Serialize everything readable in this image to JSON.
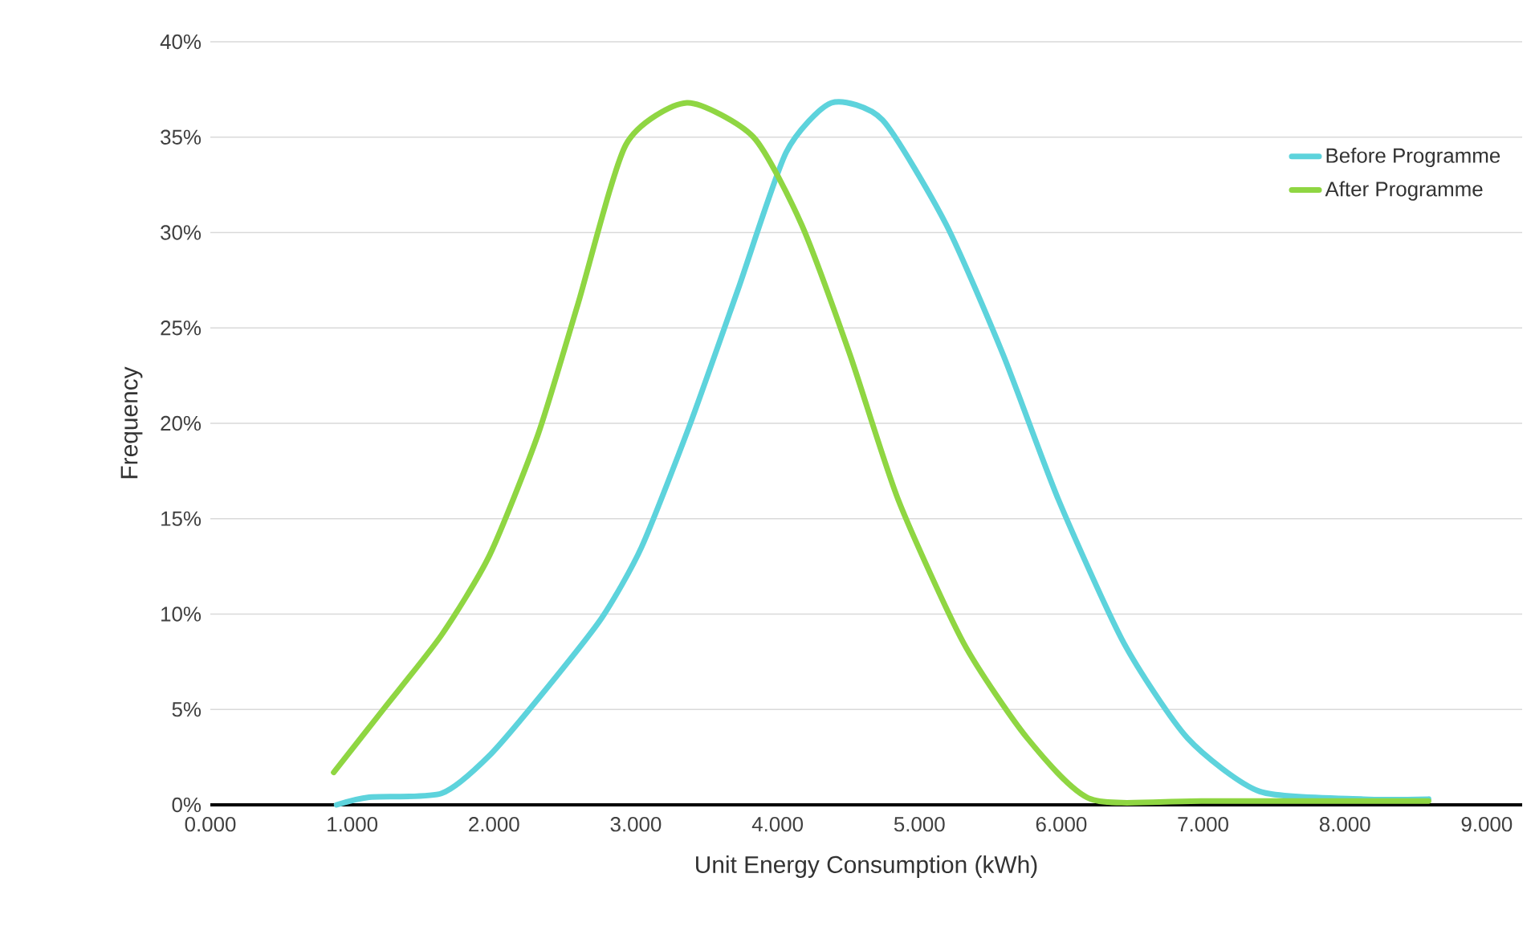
{
  "chart_data": {
    "type": "line",
    "xlabel": "Unit Energy Consumption (kWh)",
    "ylabel": "Frequency",
    "xlim": [
      0,
      9.25
    ],
    "ylim": [
      0,
      40
    ],
    "xticks": [
      {
        "value": 0,
        "label": "0.000"
      },
      {
        "value": 1,
        "label": "1.000"
      },
      {
        "value": 2,
        "label": "2.000"
      },
      {
        "value": 3,
        "label": "3.000"
      },
      {
        "value": 4,
        "label": "4.000"
      },
      {
        "value": 5,
        "label": "5.000"
      },
      {
        "value": 6,
        "label": "6.000"
      },
      {
        "value": 7,
        "label": "7.000"
      },
      {
        "value": 8,
        "label": "8.000"
      },
      {
        "value": 9,
        "label": "9.000"
      }
    ],
    "yticks": [
      {
        "value": 0,
        "label": "0%"
      },
      {
        "value": 5,
        "label": "5%"
      },
      {
        "value": 10,
        "label": "10%"
      },
      {
        "value": 15,
        "label": "15%"
      },
      {
        "value": 20,
        "label": "20%"
      },
      {
        "value": 25,
        "label": "25%"
      },
      {
        "value": 30,
        "label": "30%"
      },
      {
        "value": 35,
        "label": "35%"
      },
      {
        "value": 40,
        "label": "40%"
      }
    ],
    "grid": "y",
    "legend": "top right",
    "series": [
      {
        "name": "Before Programme",
        "color": "#5dd3dc",
        "x": [
          0.89,
          1.12,
          1.63,
          1.97,
          2.36,
          2.76,
          3.04,
          3.38,
          3.72,
          4.06,
          4.38,
          4.74,
          5.19,
          5.59,
          5.98,
          6.44,
          6.89,
          7.4,
          8.13,
          8.59
        ],
        "values": [
          0,
          0.4,
          0.6,
          2.6,
          6,
          9.8,
          13.5,
          19.9,
          27,
          34.2,
          36.8,
          35.9,
          30.4,
          23.6,
          16,
          8.5,
          3.5,
          0.7,
          0.3,
          0.3
        ]
      },
      {
        "name": "After Programme",
        "color": "#8fd642",
        "x": [
          0.87,
          1.23,
          1.63,
          1.97,
          2.31,
          2.59,
          2.93,
          3.36,
          3.83,
          4.17,
          4.51,
          4.85,
          5.31,
          5.76,
          6.21,
          7.0,
          8.59
        ],
        "values": [
          1.7,
          5.1,
          8.9,
          13.1,
          19.4,
          26.2,
          34.6,
          36.8,
          35,
          30.4,
          23.6,
          16,
          8.5,
          3.5,
          0.3,
          0.2,
          0.2
        ]
      }
    ]
  }
}
